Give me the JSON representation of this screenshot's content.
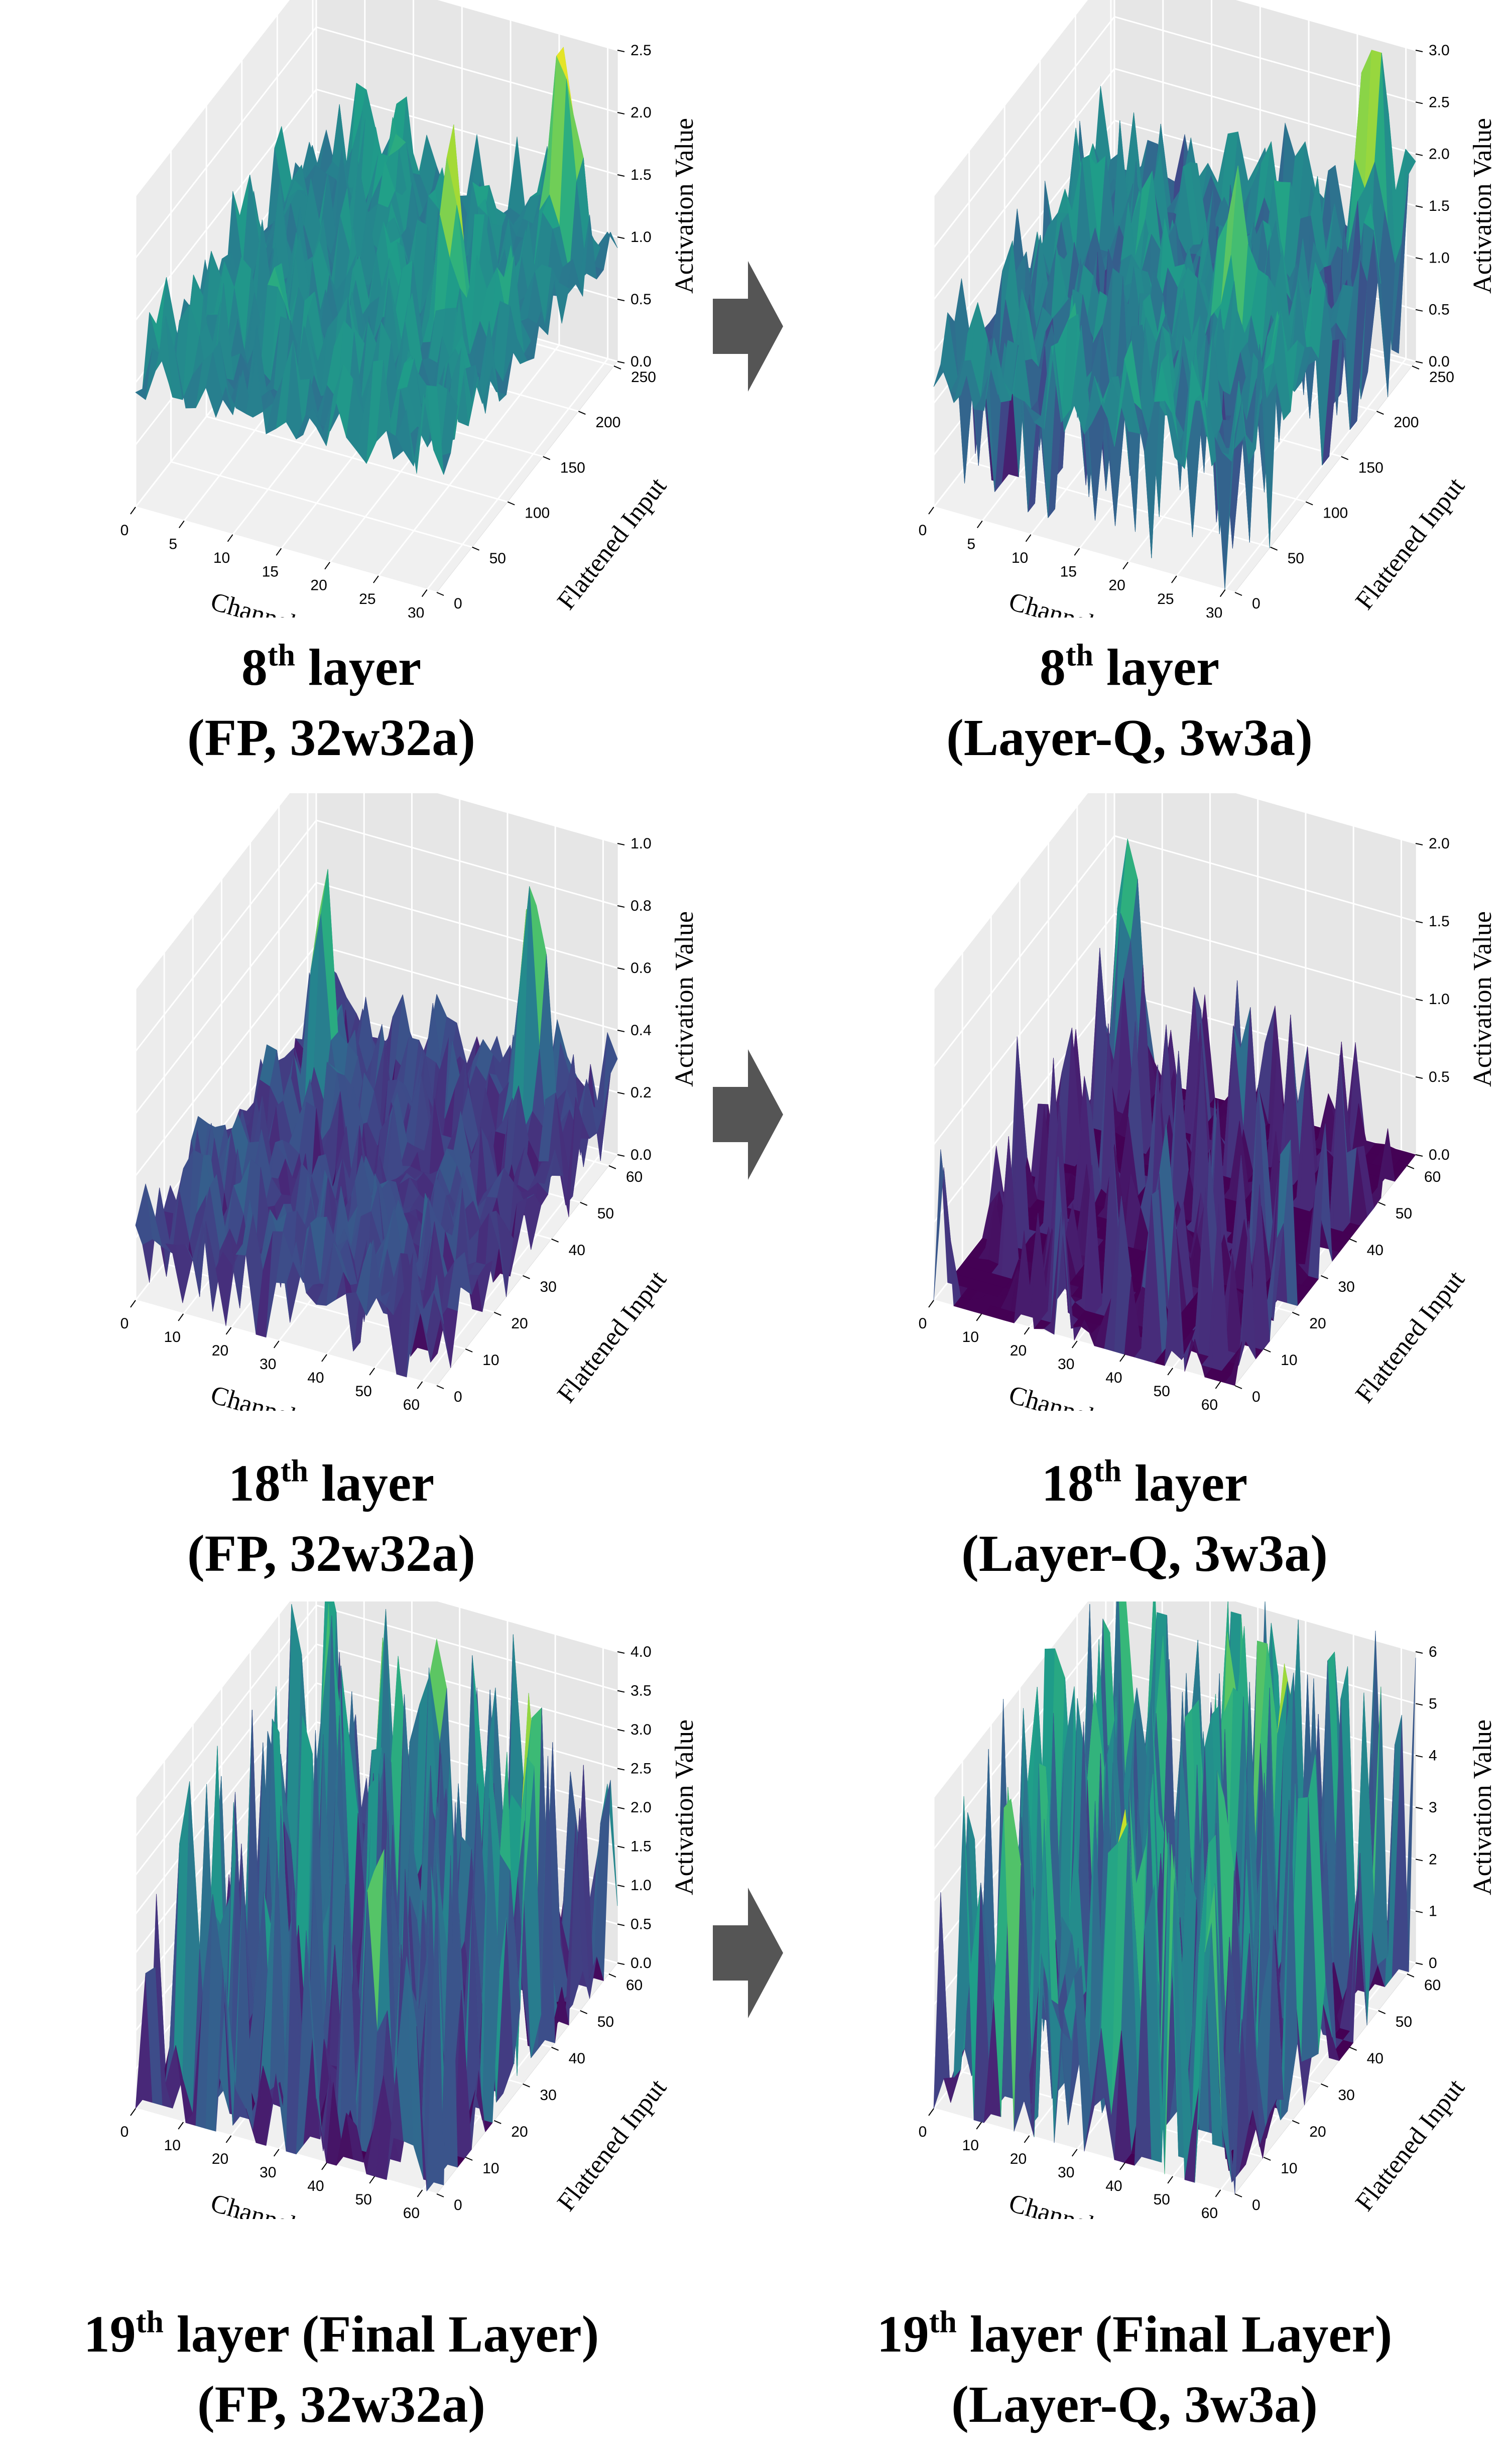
{
  "figure": {
    "axis_labels": {
      "x": "Channel",
      "y": "Flattened Input",
      "z": "Activation Value"
    },
    "arrow_color": "#555555"
  },
  "chart_data": [
    {
      "type": "surface3d",
      "colormap": "viridis",
      "layer": "8",
      "suffix": "th",
      "caption_rest": " layer",
      "caption_line2": "(FP, 32w32a)",
      "xlabel": "Channel",
      "ylabel": "Flattened Input",
      "zlabel": "Activation Value",
      "xlim": [
        0,
        31
      ],
      "ylim": [
        0,
        255
      ],
      "zlim": [
        0,
        2.5
      ],
      "xticks": [
        "0",
        "5",
        "10",
        "15",
        "20",
        "25",
        "30"
      ],
      "xtick_values": [
        0,
        5,
        10,
        15,
        20,
        25,
        30
      ],
      "yticks": [
        "0",
        "50",
        "100",
        "150",
        "200",
        "250"
      ],
      "ytick_values": [
        0,
        50,
        100,
        150,
        200,
        250
      ],
      "zticks": [
        "0.0",
        "0.5",
        "1.0",
        "1.5",
        "2.0",
        "2.5"
      ],
      "ztick_values": [
        0,
        0.5,
        1.0,
        1.5,
        2.0,
        2.5
      ],
      "peaks": [
        {
          "channel": 27,
          "input": 230,
          "value": 2.1
        },
        {
          "channel": 23,
          "input": 130,
          "value": 1.6
        }
      ],
      "zero_fraction": 0.0,
      "baseline": 0.35,
      "noise": 0.7,
      "seed": 11
    },
    {
      "type": "surface3d",
      "colormap": "viridis",
      "layer": "8",
      "suffix": "th",
      "caption_rest": " layer",
      "caption_line2": "(Layer-Q, 3w3a)",
      "xlabel": "Channel",
      "ylabel": "Flattened Input",
      "zlabel": "Activation Value",
      "xlim": [
        0,
        31
      ],
      "ylim": [
        0,
        255
      ],
      "zlim": [
        0,
        3.0
      ],
      "xticks": [
        "0",
        "5",
        "10",
        "15",
        "20",
        "25",
        "30"
      ],
      "xtick_values": [
        0,
        5,
        10,
        15,
        20,
        25,
        30
      ],
      "yticks": [
        "0",
        "50",
        "100",
        "150",
        "200",
        "250"
      ],
      "ytick_values": [
        0,
        50,
        100,
        150,
        200,
        250
      ],
      "zticks": [
        "0.0",
        "0.5",
        "1.0",
        "1.5",
        "2.0",
        "2.5",
        "3.0"
      ],
      "ztick_values": [
        0,
        0.5,
        1.0,
        1.5,
        2.0,
        2.5,
        3.0
      ],
      "peaks": [
        {
          "channel": 28,
          "input": 235,
          "value": 3.2
        },
        {
          "channel": 22,
          "input": 120,
          "value": 1.4
        }
      ],
      "zero_fraction": 0.12,
      "baseline": 0.35,
      "noise": 0.75,
      "seed": 23
    },
    {
      "type": "surface3d",
      "colormap": "viridis",
      "layer": "18",
      "suffix": "th",
      "caption_rest": " layer",
      "caption_line2": "(FP, 32w32a)",
      "xlabel": "Channel",
      "ylabel": "Flattened Input",
      "zlabel": "Activation Value",
      "xlim": [
        0,
        63
      ],
      "ylim": [
        0,
        63
      ],
      "zlim": [
        0,
        1.0
      ],
      "xticks": [
        "0",
        "10",
        "20",
        "30",
        "40",
        "50",
        "60"
      ],
      "xtick_values": [
        0,
        10,
        20,
        30,
        40,
        50,
        60
      ],
      "yticks": [
        "0",
        "10",
        "20",
        "30",
        "40",
        "50",
        "60"
      ],
      "ytick_values": [
        0,
        10,
        20,
        30,
        40,
        50,
        60
      ],
      "zticks": [
        "0.0",
        "0.2",
        "0.4",
        "0.6",
        "0.8",
        "1.0"
      ],
      "ztick_values": [
        0,
        0.2,
        0.4,
        0.6,
        0.8,
        1.0
      ],
      "peaks": [
        {
          "channel": 50,
          "input": 55,
          "value": 0.9
        },
        {
          "channel": 12,
          "input": 45,
          "value": 0.75
        }
      ],
      "zero_fraction": 0.15,
      "baseline": 0.15,
      "noise": 0.55,
      "seed": 37
    },
    {
      "type": "surface3d",
      "colormap": "viridis",
      "layer": "18",
      "suffix": "th",
      "caption_rest": " layer",
      "caption_line2": "(Layer-Q, 3w3a)",
      "xlabel": "Channel",
      "ylabel": "Flattened Input",
      "zlabel": "Activation Value",
      "xlim": [
        0,
        63
      ],
      "ylim": [
        0,
        63
      ],
      "zlim": [
        0,
        2.0
      ],
      "xticks": [
        "0",
        "10",
        "20",
        "30",
        "40",
        "50",
        "60"
      ],
      "xtick_values": [
        0,
        10,
        20,
        30,
        40,
        50,
        60
      ],
      "yticks": [
        "0",
        "10",
        "20",
        "30",
        "40",
        "50",
        "60"
      ],
      "ytick_values": [
        0,
        10,
        20,
        30,
        40,
        50,
        60
      ],
      "zticks": [
        "0.0",
        "0.5",
        "1.0",
        "1.5",
        "2.0"
      ],
      "ztick_values": [
        0,
        0.5,
        1.0,
        1.5,
        2.0
      ],
      "peaks": [
        {
          "channel": 5,
          "input": 60,
          "value": 1.8
        }
      ],
      "zero_fraction": 0.72,
      "baseline": 0.0,
      "noise": 1.3,
      "seed": 41
    },
    {
      "type": "surface3d",
      "colormap": "viridis",
      "layer": "19",
      "suffix": "th",
      "caption_rest": " layer (Final Layer)",
      "caption_line2": "(FP, 32w32a)",
      "xlabel": "Channel",
      "ylabel": "Flattened Input",
      "zlabel": "Activation Value",
      "xlim": [
        0,
        63
      ],
      "ylim": [
        0,
        63
      ],
      "zlim": [
        0,
        4.0
      ],
      "xticks": [
        "0",
        "10",
        "20",
        "30",
        "40",
        "50",
        "60"
      ],
      "xtick_values": [
        0,
        10,
        20,
        30,
        40,
        50,
        60
      ],
      "yticks": [
        "0",
        "10",
        "20",
        "30",
        "40",
        "50",
        "60"
      ],
      "ytick_values": [
        0,
        10,
        20,
        30,
        40,
        50,
        60
      ],
      "zticks": [
        "0.0",
        "0.5",
        "1.0",
        "1.5",
        "2.0",
        "2.5",
        "3.0",
        "3.5",
        "4.0"
      ],
      "ztick_values": [
        0,
        0.5,
        1.0,
        1.5,
        2.0,
        2.5,
        3.0,
        3.5,
        4.0
      ],
      "peaks": [
        {
          "channel": 25,
          "input": 62,
          "value": 3.9
        },
        {
          "channel": 55,
          "input": 45,
          "value": 3.4
        }
      ],
      "zero_fraction": 0.45,
      "baseline": 0.1,
      "noise": 2.4,
      "seed": 53
    },
    {
      "type": "surface3d",
      "colormap": "viridis",
      "layer": "19",
      "suffix": "th",
      "caption_rest": " layer (Final Layer)",
      "caption_line2": "(Layer-Q, 3w3a)",
      "xlabel": "Channel",
      "ylabel": "Flattened Input",
      "zlabel": "Activation Value",
      "xlim": [
        0,
        63
      ],
      "ylim": [
        0,
        63
      ],
      "zlim": [
        0,
        6
      ],
      "xticks": [
        "0",
        "10",
        "20",
        "30",
        "40",
        "50",
        "60"
      ],
      "xtick_values": [
        0,
        10,
        20,
        30,
        40,
        50,
        60
      ],
      "yticks": [
        "0",
        "10",
        "20",
        "30",
        "40",
        "50",
        "60"
      ],
      "ytick_values": [
        0,
        10,
        20,
        30,
        40,
        50,
        60
      ],
      "zticks": [
        "0",
        "1",
        "2",
        "3",
        "4",
        "5",
        "6"
      ],
      "ztick_values": [
        0,
        1,
        2,
        3,
        4,
        5,
        6
      ],
      "peaks": [
        {
          "channel": 40,
          "input": 55,
          "value": 6.0
        }
      ],
      "zero_fraction": 0.35,
      "baseline": 0.1,
      "noise": 2.8,
      "seed": 67
    }
  ]
}
